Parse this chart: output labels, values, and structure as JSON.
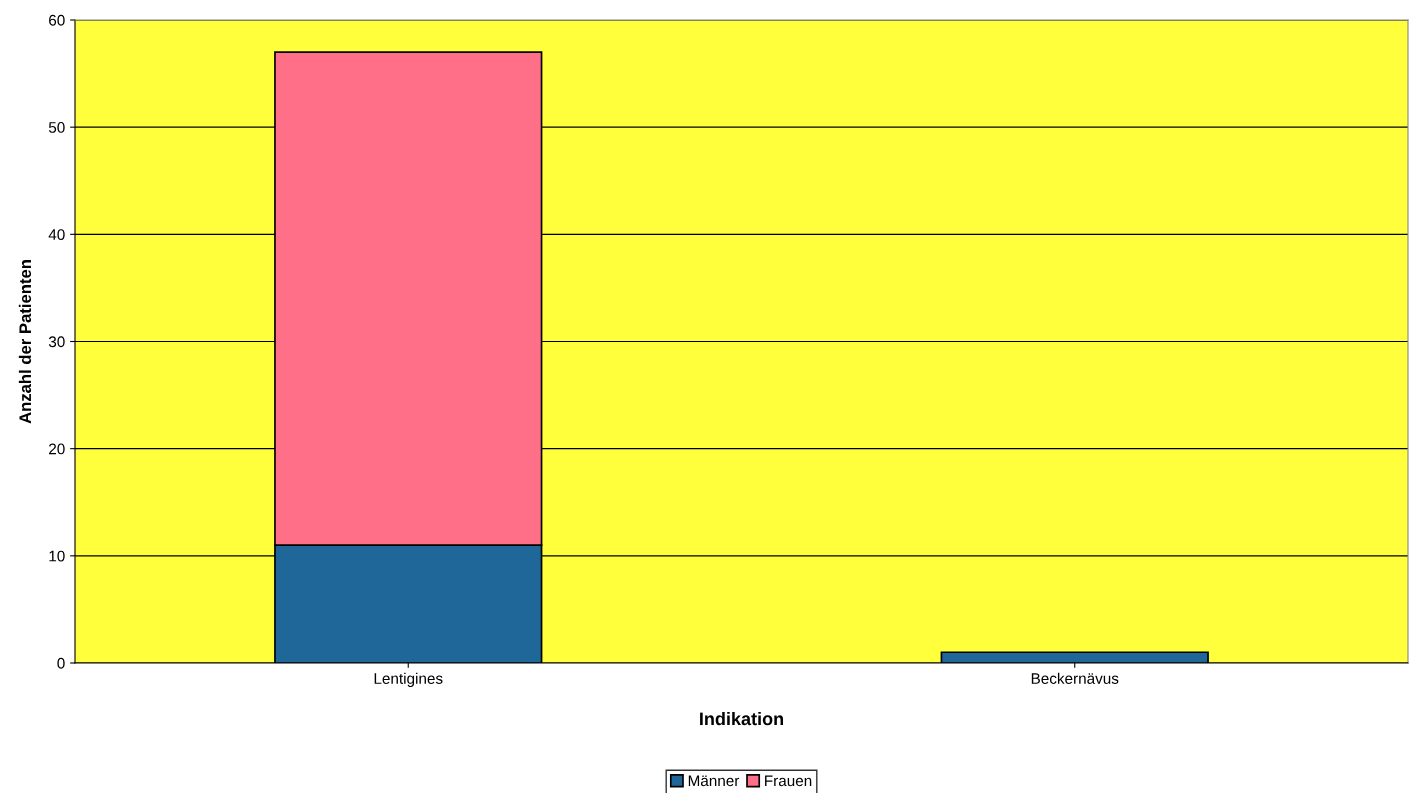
{
  "chart_data": {
    "type": "bar",
    "xlabel": "Indikation",
    "ylabel": "Anzahl der Patienten",
    "categories": [
      "Lentigines",
      "Beckernävus"
    ],
    "series": [
      {
        "name": "Männer",
        "color": "#1f6699",
        "values": [
          11,
          1
        ]
      },
      {
        "name": "Frauen",
        "color": "#ff6f87",
        "values": [
          46,
          null
        ]
      }
    ],
    "stacked": true,
    "ylim": [
      0,
      60
    ],
    "yticks": [
      0,
      10,
      20,
      30,
      40,
      50,
      60
    ],
    "grid": "y",
    "legend": "bottom"
  }
}
